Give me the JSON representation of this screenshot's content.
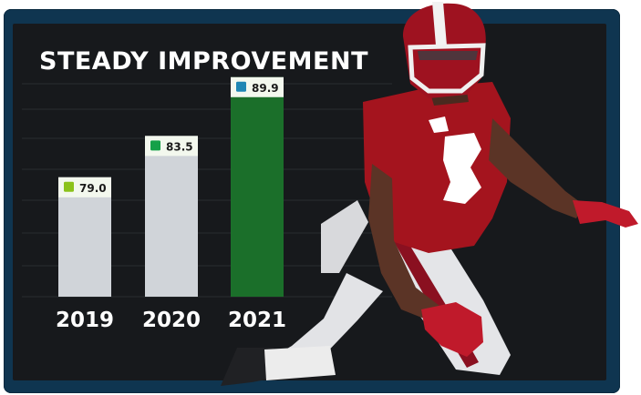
{
  "chart_data": {
    "type": "bar",
    "title": "STEADY IMPROVEMENT",
    "categories": [
      "2019",
      "2020",
      "2021"
    ],
    "values": [
      79.0,
      83.5,
      89.9
    ],
    "value_labels": [
      "79.0",
      "83.5",
      "89.9"
    ],
    "bar_colors": [
      "#d0d4d9",
      "#d0d4d9",
      "#1b6f2a"
    ],
    "marker_colors": [
      "#8bc21a",
      "#15a048",
      "#1e86b4"
    ],
    "label_bg": "#f3f8ee",
    "grid": true,
    "legend": "none"
  }
}
